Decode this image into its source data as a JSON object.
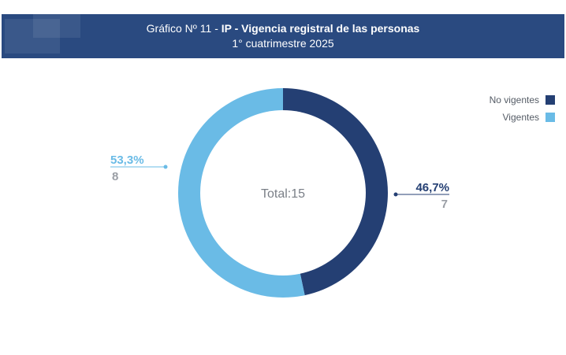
{
  "header": {
    "prefix": "Gráfico Nº 11  - ",
    "title": "IP - Vigencia registral de las personas",
    "subtitle": "1° cuatrimestre 2025"
  },
  "chart_data": {
    "type": "pie",
    "donut": true,
    "center_label": "Total:15",
    "legend_position": "top-right",
    "categories": [
      "No vigentes",
      "Vigentes"
    ],
    "values": [
      7,
      8
    ],
    "percent_labels": [
      "46,7%",
      "53,3%"
    ],
    "colors": [
      "#243f73",
      "#6abbe6"
    ]
  }
}
